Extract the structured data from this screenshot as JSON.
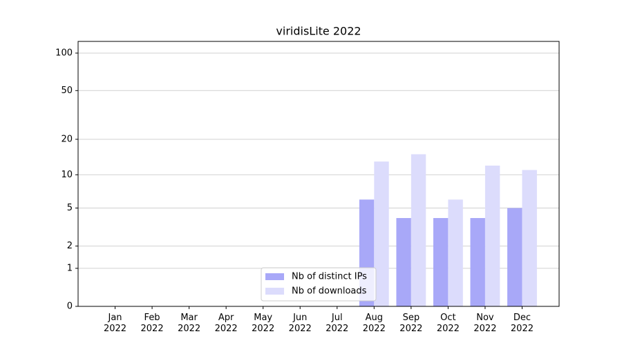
{
  "chart_data": {
    "type": "bar",
    "title": "viridisLite 2022",
    "categories": [
      "Jan\n2022",
      "Feb\n2022",
      "Mar\n2022",
      "Apr\n2022",
      "May\n2022",
      "Jun\n2022",
      "Jul\n2022",
      "Aug\n2022",
      "Sep\n2022",
      "Oct\n2022",
      "Nov\n2022",
      "Dec\n2022"
    ],
    "series": [
      {
        "name": "Nb of distinct IPs",
        "color": "#a8a8f8",
        "values": [
          0,
          0,
          0,
          0,
          0,
          0,
          0,
          6,
          4,
          4,
          4,
          5
        ]
      },
      {
        "name": "Nb of downloads",
        "color": "#dcdcfc",
        "values": [
          0,
          0,
          0,
          0,
          0,
          0,
          0,
          13,
          15,
          6,
          12,
          11
        ]
      }
    ],
    "yscale": "log1p",
    "ylim": [
      0,
      124
    ],
    "yticks": [
      0,
      1,
      2,
      5,
      10,
      20,
      50,
      100
    ],
    "grid": true,
    "legend": "lower center"
  }
}
